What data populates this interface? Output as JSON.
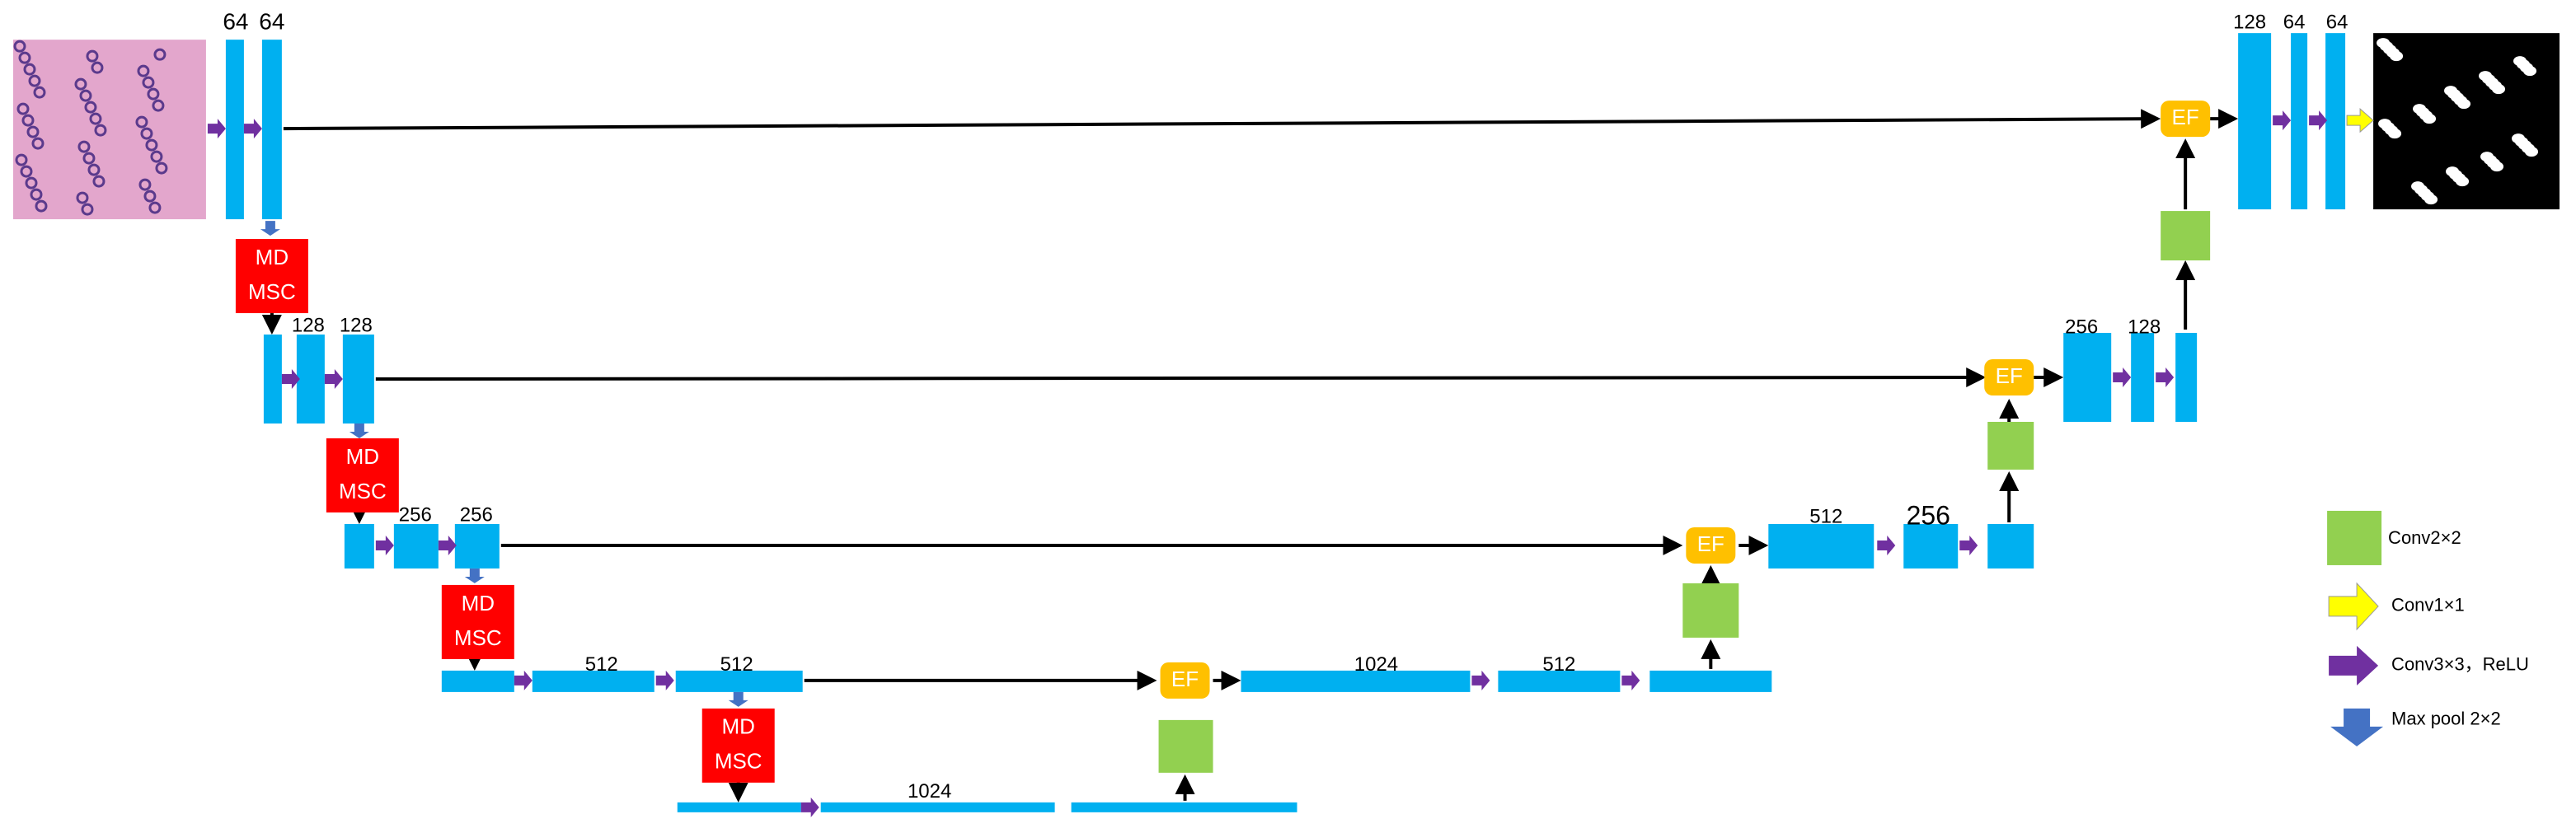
{
  "encoder": {
    "level1": [
      "64",
      "64"
    ],
    "level2": [
      "128",
      "128"
    ],
    "level3": [
      "256",
      "256"
    ],
    "level4": [
      "512",
      "512"
    ],
    "bottom": [
      "1024"
    ]
  },
  "decoder": {
    "level4": [
      "1024",
      "512"
    ],
    "level3": [
      "512",
      "256"
    ],
    "level2": [
      "256",
      "128"
    ],
    "level1": [
      "128",
      "64",
      "64"
    ]
  },
  "md_msc_blocks": [
    [
      "MD",
      "MSC"
    ],
    [
      "MD",
      "MSC"
    ],
    [
      "MD",
      "MSC"
    ],
    [
      "MD",
      "MSC"
    ]
  ],
  "ef_blocks": [
    "EF",
    "EF",
    "EF",
    "EF"
  ],
  "legend": [
    "Conv2×2",
    "Conv1×1",
    "Conv3×3，ReLU",
    "Max pool 2×2"
  ]
}
